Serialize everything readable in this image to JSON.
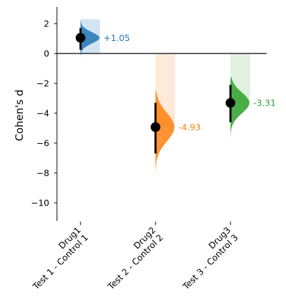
{
  "chart_data": {
    "type": "estimation-plot",
    "ylabel": "Cohen's d",
    "ylim": [
      -11.2,
      3.1
    ],
    "yticks": [
      2,
      0,
      -2,
      -4,
      -6,
      -8,
      -10
    ],
    "ytick_labels": [
      "2",
      "0",
      "−2",
      "−4",
      "−6",
      "−8",
      "−10"
    ],
    "groups": [
      {
        "line1": "Drug1",
        "line2": "Test 1 - Control 1",
        "effect": 1.05,
        "effect_label": "+1.05",
        "ci": [
          0.25,
          1.7
        ],
        "color": "#1f77b4",
        "band_color": "#c6dbef",
        "band": [
          0.0,
          2.3
        ],
        "dist_range": [
          -0.3,
          2.45
        ],
        "dist_sd": 0.38,
        "dist_width": 0.85
      },
      {
        "line1": "Drug2",
        "line2": "Test 2 - Control 2",
        "effect": -4.93,
        "effect_label": "-4.93",
        "ci": [
          -6.7,
          -3.3
        ],
        "color": "#ff7f0e",
        "band_color": "#fde3cf",
        "band": [
          -4.93,
          0.0
        ],
        "dist_range": [
          -10.0,
          -2.5
        ],
        "dist_sd": 0.95,
        "dist_width": 0.85
      },
      {
        "line1": "Drug3",
        "line2": "Test 3 - Control 3",
        "effect": -3.31,
        "effect_label": "-3.31",
        "ci": [
          -4.6,
          -2.1
        ],
        "color": "#2ca02c",
        "band_color": "#d5ecd4",
        "band": [
          -3.31,
          0.0
        ],
        "dist_range": [
          -6.5,
          -1.6
        ],
        "dist_sd": 0.7,
        "dist_width": 0.85
      }
    ]
  }
}
